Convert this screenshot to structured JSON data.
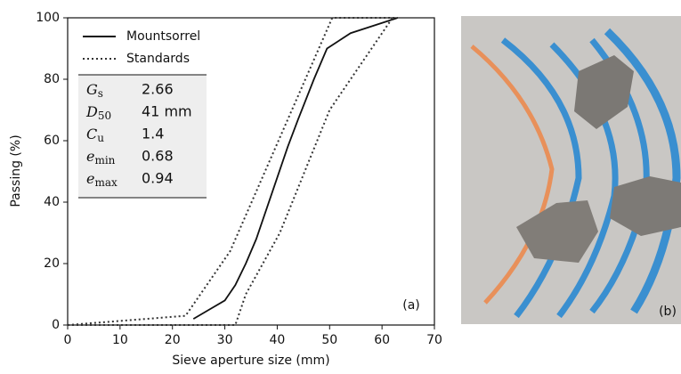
{
  "chart_data": {
    "type": "line",
    "xlabel": "Sieve aperture size (mm)",
    "ylabel": "Passing (%)",
    "xlim": [
      0,
      70
    ],
    "xticks": [
      0,
      10,
      20,
      30,
      40,
      50,
      60,
      70
    ],
    "ylim": [
      0,
      100
    ],
    "yticks": [
      0,
      20,
      40,
      60,
      80,
      100
    ],
    "series": [
      {
        "name": "Mountsorrel",
        "color": "#111111",
        "style": "solid",
        "x": [
          24,
          27,
          30,
          32,
          34,
          36,
          38,
          40,
          42,
          44,
          47,
          49.5,
          54,
          63
        ],
        "values": [
          2,
          5,
          8,
          13,
          20,
          28,
          38,
          48,
          58,
          67,
          80,
          90,
          95,
          100
        ]
      },
      {
        "name": "Standards",
        "color": "#333333",
        "style": "dotted",
        "x": [
          0,
          22.5,
          31,
          50.5,
          63
        ],
        "values": [
          0,
          3,
          24,
          100,
          100
        ]
      },
      {
        "color": "#333333",
        "style": "dotted",
        "x": [
          0,
          32,
          34,
          40.5,
          50,
          62
        ],
        "values": [
          0,
          0,
          10,
          30,
          70,
          100
        ]
      }
    ],
    "properties": [
      {
        "symbol": "G",
        "subscript": "s",
        "value": "2.66"
      },
      {
        "symbol": "D",
        "subscript": "50",
        "value": "41 mm"
      },
      {
        "symbol": "C",
        "subscript": "u",
        "value": "1.4"
      },
      {
        "symbol": "e",
        "subscript": "min",
        "value": "0.68"
      },
      {
        "symbol": "e",
        "subscript": "max",
        "value": "0.94"
      }
    ],
    "panel_labels": [
      "(a)",
      "(b)"
    ]
  }
}
